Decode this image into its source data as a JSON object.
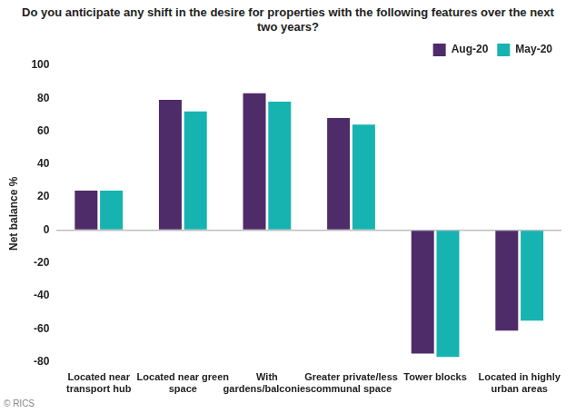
{
  "chart_data": {
    "type": "bar",
    "title": "Do you anticipate any shift in the desire for properties with the following features over the next two years?",
    "y_label": "Net balance %",
    "source": "© RICS",
    "categories": [
      "Located near transport hub",
      "Located near green space",
      "With gardens/balconies",
      "Greater private/less communal space",
      "Tower blocks",
      "Located in highly urban areas"
    ],
    "series": [
      {
        "name": "Aug-20",
        "color": "#4d2c69",
        "values": [
          24,
          79,
          83,
          68,
          -75,
          -61
        ]
      },
      {
        "name": "May-20",
        "color": "#17b3b1",
        "values": [
          24,
          72,
          78,
          64,
          -77,
          -55
        ]
      }
    ],
    "ylim": [
      -80,
      100
    ],
    "yticks": [
      -80,
      -60,
      -40,
      -20,
      0,
      20,
      40,
      60,
      80,
      100
    ],
    "grid": false,
    "legend": "upper right"
  }
}
